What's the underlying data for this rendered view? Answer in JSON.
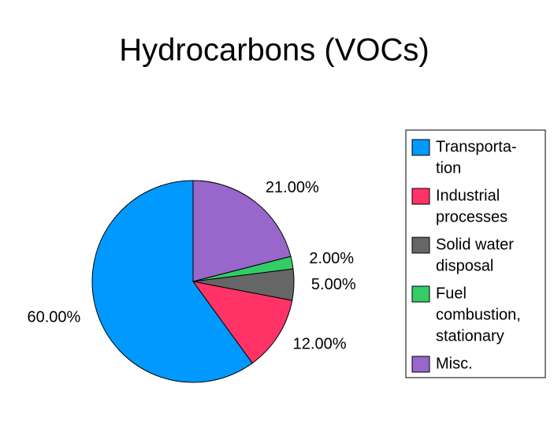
{
  "chart_data": {
    "type": "pie",
    "title": "Hydrocarbons (VOCs)",
    "categories": [
      [
        "Transporta-",
        "tion"
      ],
      [
        "Industrial",
        "processes"
      ],
      [
        "Solid water",
        "disposal"
      ],
      [
        "Fuel",
        "combustion,",
        "stationary"
      ],
      [
        "Misc."
      ]
    ],
    "values": [
      60,
      12,
      5,
      2,
      21
    ],
    "value_labels": [
      "60.00%",
      "12.00%",
      "5.00%",
      "2.00%",
      "21.00%"
    ],
    "colors": [
      "#0099ff",
      "#ff3366",
      "#666666",
      "#33cc66",
      "#9966cc"
    ],
    "legend": "right"
  }
}
